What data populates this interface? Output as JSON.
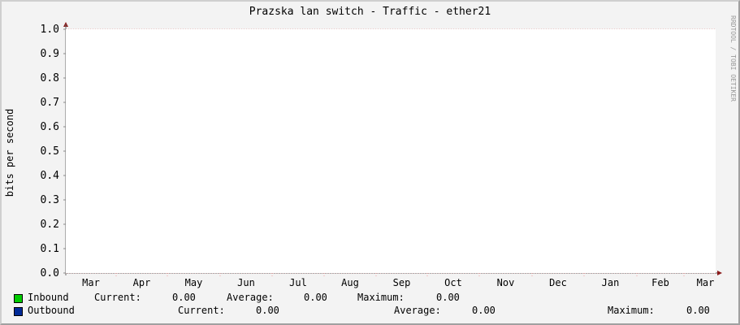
{
  "chart_data": {
    "type": "line",
    "title": "Prazska lan switch - Traffic - ether21",
    "ylabel": "bits per second",
    "ylim": [
      0,
      1.0
    ],
    "yticks": [
      "0.0",
      "0.1",
      "0.2",
      "0.3",
      "0.4",
      "0.5",
      "0.6",
      "0.7",
      "0.8",
      "0.9",
      "1.0"
    ],
    "xticks": [
      "Mar",
      "Apr",
      "May",
      "Jun",
      "Jul",
      "Aug",
      "Sep",
      "Oct",
      "Nov",
      "Dec",
      "Jan",
      "Feb",
      "Mar"
    ],
    "grid": true,
    "series": [
      {
        "name": "Inbound",
        "color": "#00cc00",
        "values": []
      },
      {
        "name": "Outbound",
        "color": "#002a97",
        "values": []
      }
    ]
  },
  "watermark": "RRDTOOL / TOBI OETIKER",
  "legend": {
    "inbound": {
      "label": "Inbound",
      "current_label": "Current:",
      "current": "0.00",
      "average_label": "Average:",
      "average": "0.00",
      "maximum_label": "Maximum:",
      "maximum": "0.00"
    },
    "outbound": {
      "label": "Outbound",
      "current_label": "Current:",
      "current": "0.00",
      "average_label": "Average:",
      "average": "0.00",
      "maximum_label": "Maximum:",
      "maximum": "0.00"
    }
  }
}
